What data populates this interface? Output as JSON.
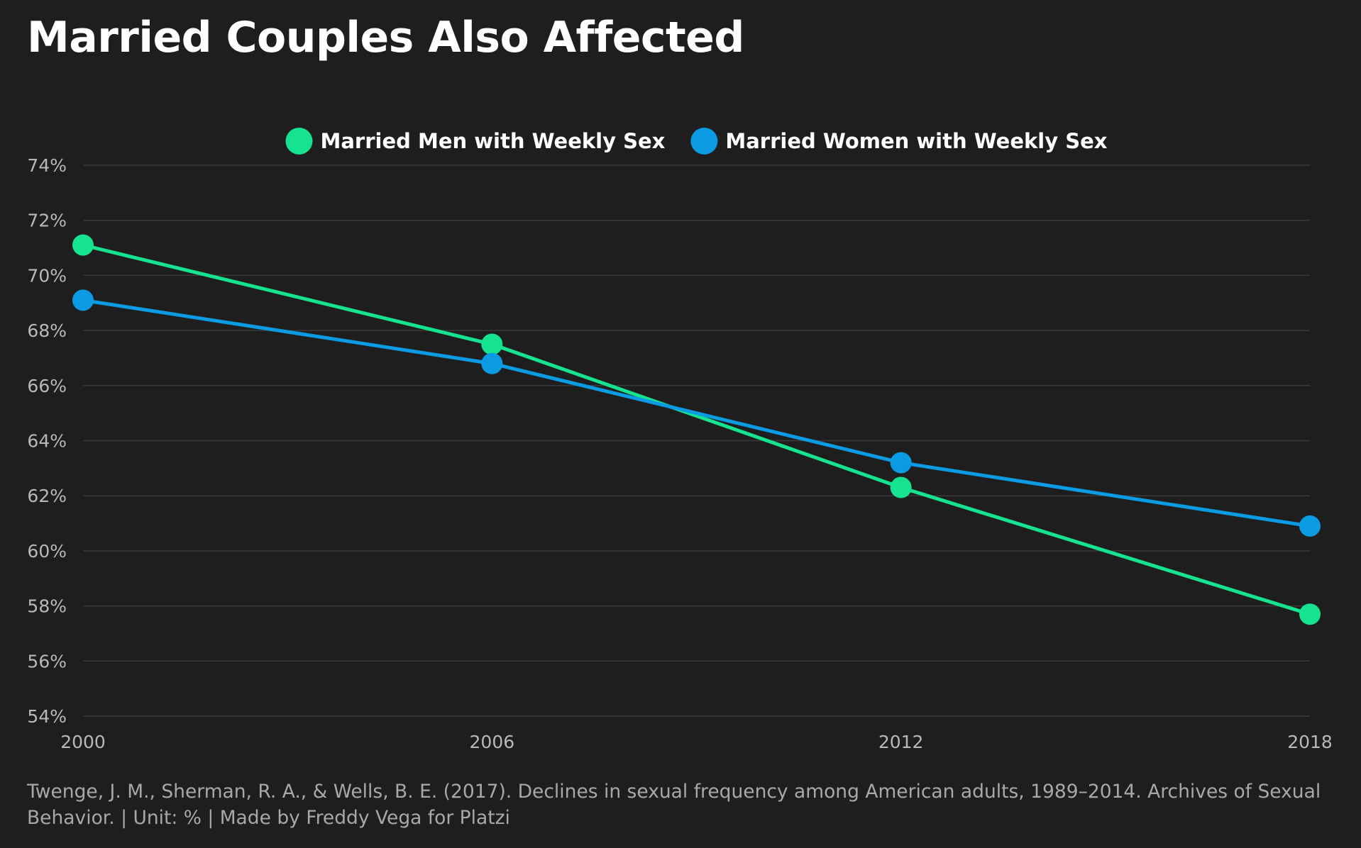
{
  "title": "Married Couples Also Affected",
  "source": "Twenge, J. M., Sherman, R. A., & Wells, B. E. (2017). Declines in sexual frequency among American adults, 1989–2014. Archives of Sexual Behavior. | Unit: % | Made by Freddy Vega for Platzi",
  "colors": {
    "background": "#1e1e1e",
    "grid": "#3a3a3a",
    "tick_text": "#b8b8b8",
    "legend_text": "#ffffff",
    "men": "#15e38f",
    "women": "#0a9be3"
  },
  "chart_data": {
    "type": "line",
    "title": "Married Couples Also Affected",
    "x": [
      "2000",
      "2006",
      "2012",
      "2018"
    ],
    "series": [
      {
        "name": "Married Men with Weekly Sex",
        "color": "#15e38f",
        "values": [
          71.1,
          67.5,
          62.3,
          57.7
        ]
      },
      {
        "name": "Married Women with Weekly Sex",
        "color": "#0a9be3",
        "values": [
          69.1,
          66.8,
          63.2,
          60.9
        ]
      }
    ],
    "ylim": [
      54,
      74
    ],
    "yticks": [
      54,
      56,
      58,
      60,
      62,
      64,
      66,
      68,
      70,
      72,
      74
    ],
    "ytick_suffix": "%",
    "grid": true,
    "legend": "top-center",
    "xlabel": "",
    "ylabel": ""
  }
}
